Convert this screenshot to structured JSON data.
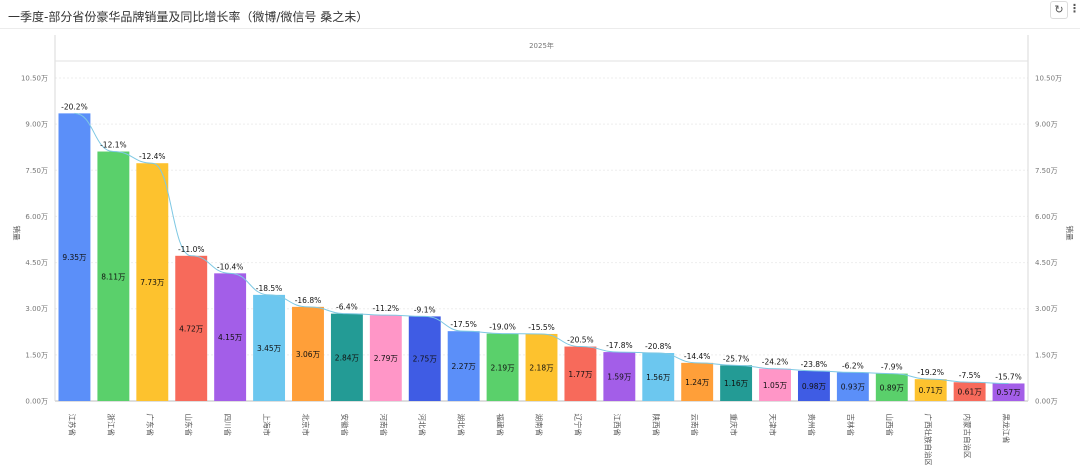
{
  "title": "一季度-部分省份豪华品牌销量及同比增长率（微博/微信号 桑之未）",
  "toolbar": {
    "refresh_icon": "refresh-icon",
    "more_icon": "more-vertical-icon",
    "refresh_glyph": "↻",
    "more_glyph": "⋮"
  },
  "chart_data": {
    "type": "bar",
    "title": "一季度-部分省份豪华品牌销量及同比增长率（微博/微信号 桑之未）",
    "group_label": "2025年",
    "ylabel": "销量",
    "ylabel_right": "销量",
    "unit": "万",
    "ylim": [
      0,
      10.5
    ],
    "yticks": [
      "0.00万",
      "1.50万",
      "3.00万",
      "4.50万",
      "6.00万",
      "7.50万",
      "9.00万",
      "10.50万"
    ],
    "grid": true,
    "categories": [
      "江苏省",
      "浙江省",
      "广东省",
      "山东省",
      "四川省",
      "上海市",
      "北京市",
      "安徽省",
      "河南省",
      "河北省",
      "湖北省",
      "福建省",
      "湖南省",
      "辽宁省",
      "江西省",
      "陕西省",
      "云南省",
      "重庆市",
      "天津市",
      "贵州省",
      "吉林省",
      "山西省",
      "广西壮族自治区",
      "内蒙古自治区",
      "黑龙江省"
    ],
    "values": [
      9.35,
      8.11,
      7.73,
      4.72,
      4.15,
      3.45,
      3.06,
      2.84,
      2.79,
      2.75,
      2.27,
      2.19,
      2.18,
      1.77,
      1.59,
      1.56,
      1.24,
      1.16,
      1.05,
      0.98,
      0.93,
      0.89,
      0.71,
      0.61,
      0.57
    ],
    "value_labels": [
      "9.35万",
      "8.11万",
      "7.73万",
      "4.72万",
      "4.15万",
      "3.45万",
      "3.06万",
      "2.84万",
      "2.79万",
      "2.75万",
      "2.27万",
      "2.19万",
      "2.18万",
      "1.77万",
      "1.59万",
      "1.56万",
      "1.24万",
      "1.16万",
      "1.05万",
      "0.98万",
      "0.93万",
      "0.89万",
      "0.71万",
      "0.61万",
      "0.57万"
    ],
    "growth_labels": [
      "-20.2%",
      "-12.1%",
      "-12.4%",
      "-11.0%",
      "-10.4%",
      "-18.5%",
      "-16.8%",
      "-6.4%",
      "-11.2%",
      "-9.1%",
      "-17.5%",
      "-19.0%",
      "-15.5%",
      "-20.5%",
      "-17.8%",
      "-20.8%",
      "-14.4%",
      "-25.7%",
      "-24.2%",
      "-23.8%",
      "-6.2%",
      "-7.9%",
      "-19.2%",
      "-7.5%",
      "-15.7%"
    ],
    "colors": [
      "#5b8ff9",
      "#5ad06b",
      "#fdc22e",
      "#f76a5b",
      "#a35ee8",
      "#6cc7ef",
      "#ff9f39",
      "#239b95",
      "#ff96c7",
      "#3f5ce4",
      "#5b8ff9",
      "#5ad06b",
      "#fdc22e",
      "#f76a5b",
      "#a35ee8",
      "#6cc7ef",
      "#ff9f39",
      "#239b95",
      "#ff96c7",
      "#3f5ce4",
      "#5b8ff9",
      "#5ad06b",
      "#fdc22e",
      "#f76a5b",
      "#a35ee8"
    ],
    "line_color": "#7ec8e3"
  }
}
